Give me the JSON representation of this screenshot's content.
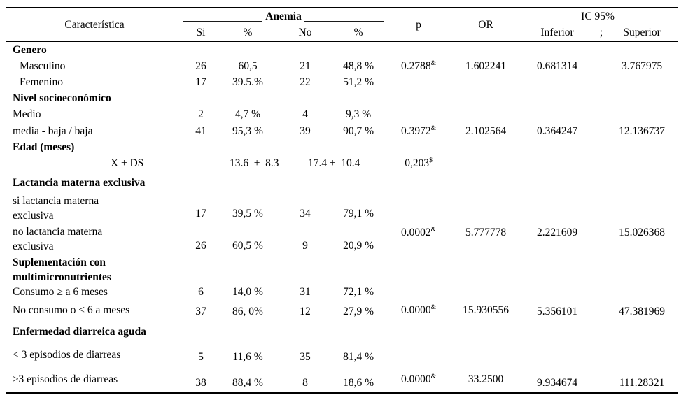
{
  "table": {
    "header": {
      "caracteristica": "Característica",
      "anemia": "Anemia",
      "si": "Si",
      "pct_si": "%",
      "no": "No",
      "pct_no": "%",
      "p": "p",
      "or": "OR",
      "ic": "IC 95%",
      "inferior": "Inferior",
      "separator": ";",
      "superior": "Superior"
    },
    "rows": [
      {
        "section": "Genero"
      },
      {
        "label": "Masculino",
        "si": "26",
        "psi": "60,5",
        "no": "21",
        "pno": "48,8 %",
        "p": "0.2788",
        "psup": "&",
        "or": "1.602241",
        "inf": "0.681314",
        "sup": "3.767975"
      },
      {
        "label": "Femenino",
        "si": "17",
        "psi": "39.5.%",
        "no": "22",
        "pno": "51,2 %"
      },
      {
        "section": "Nivel socioeconómico"
      },
      {
        "label": "Medio",
        "si": "2",
        "psi": "4,7 %",
        "no": "4",
        "pno": "9,3 %"
      },
      {
        "label": "media - baja / baja",
        "si": "41",
        "psi": "95,3 %",
        "no": "39",
        "pno": "90,7 %",
        "p": "0.3972",
        "psup": "&",
        "or": "2.102564",
        "inf": "0.364247",
        "sup": "12.136737"
      },
      {
        "section": "Edad (meses)"
      },
      {
        "label": "X ± DS",
        "mean_si": "13.6  ±  8.3",
        "mean_no": "17.4 ±  10.4",
        "p": "0,203",
        "psup": "$"
      },
      {
        "section": "Lactancia materna exclusiva"
      },
      {
        "label": "si lactancia materna\nexclusiva",
        "si": "17",
        "psi": "39,5 %",
        "no": "34",
        "pno": "79,1 %"
      },
      {
        "label": "no lactancia materna\nexclusiva",
        "si": "26",
        "psi": "60,5 %",
        "no": "9",
        "pno": "20,9 %",
        "p": "0.0002",
        "psup": "&",
        "or": "5.777778",
        "inf": "2.221609",
        "sup": "15.026368"
      },
      {
        "section": "Suplementación con\nmultimicronutrientes"
      },
      {
        "label": "Consumo ≥ a 6 meses",
        "si": "6",
        "psi": "14,0 %",
        "no": "31",
        "pno": "72,1 %"
      },
      {
        "label": "No consumo o < 6 a meses",
        "si": "37",
        "psi": "86, 0%",
        "no": "12",
        "pno": "27,9 %",
        "p": "0.0000",
        "psup": "&",
        "or": "15.930556",
        "inf": "5.356101",
        "sup": "47.381969"
      },
      {
        "section": "Enfermedad diarreica aguda"
      },
      {
        "label": "< 3 episodios de diarreas",
        "si": "5",
        "psi": "11,6 %",
        "no": "35",
        "pno": "81,4 %"
      },
      {
        "label": "≥3 episodios de diarreas",
        "si": "38",
        "psi": "88,4 %",
        "no": "8",
        "pno": "18,6 %",
        "p": "0.0000",
        "psup": "&",
        "or": "33.2500",
        "inf": "9.934674",
        "sup": "111.28321"
      }
    ]
  }
}
